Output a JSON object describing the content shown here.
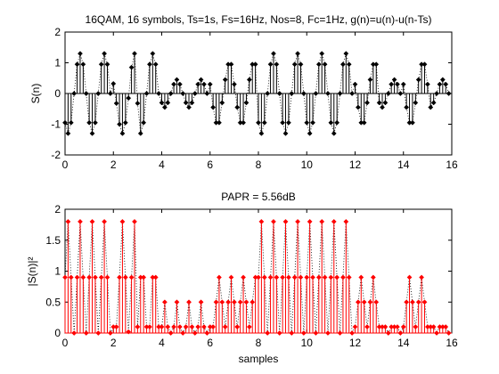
{
  "chart_data": [
    {
      "type": "stem",
      "title": "16QAM, 16 symbols, Ts=1s, Fs=16Hz, Nos=8, Fc=1Hz, g(n)=u(n)-u(n-Ts)",
      "xlabel": "",
      "ylabel": "S(n)",
      "xlim": [
        0,
        16
      ],
      "ylim": [
        -2,
        2
      ],
      "xticks": [
        "0",
        "2",
        "4",
        "6",
        "8",
        "10",
        "12",
        "14",
        "16"
      ],
      "yticks": [
        "-2",
        "-1",
        "0",
        "1",
        "2"
      ],
      "stem_color": "#000000",
      "dotted_line_color": "#000000",
      "grid": false,
      "x": [
        0,
        0.125,
        0.25,
        0.375,
        0.5,
        0.625,
        0.75,
        0.875,
        1,
        1.125,
        1.25,
        1.375,
        1.5,
        1.625,
        1.75,
        1.875,
        2,
        2.125,
        2.25,
        2.375,
        2.5,
        2.625,
        2.75,
        2.875,
        3,
        3.125,
        3.25,
        3.375,
        3.5,
        3.625,
        3.75,
        3.875,
        4,
        4.125,
        4.25,
        4.375,
        4.5,
        4.625,
        4.75,
        4.875,
        5,
        5.125,
        5.25,
        5.375,
        5.5,
        5.625,
        5.75,
        5.875,
        6,
        6.125,
        6.25,
        6.375,
        6.5,
        6.625,
        6.75,
        6.875,
        7,
        7.125,
        7.25,
        7.375,
        7.5,
        7.625,
        7.75,
        7.875,
        8,
        8.125,
        8.25,
        8.375,
        8.5,
        8.625,
        8.75,
        8.875,
        9,
        9.125,
        9.25,
        9.375,
        9.5,
        9.625,
        9.75,
        9.875,
        10,
        10.125,
        10.25,
        10.375,
        10.5,
        10.625,
        10.75,
        10.875,
        11,
        11.125,
        11.25,
        11.375,
        11.5,
        11.625,
        11.75,
        11.875,
        12,
        12.125,
        12.25,
        12.375,
        12.5,
        12.625,
        12.75,
        12.875,
        13,
        13.125,
        13.25,
        13.375,
        13.5,
        13.625,
        13.75,
        13.875,
        14,
        14.125,
        14.25,
        14.375,
        14.5,
        14.625,
        14.75,
        14.875,
        15,
        15.125,
        15.25,
        15.375,
        15.5,
        15.625,
        15.75,
        15.875
      ],
      "values": [
        -0.95,
        -1.3,
        -0.95,
        0,
        0.95,
        1.3,
        0.95,
        0,
        -0.95,
        -1.3,
        -0.95,
        0,
        0.95,
        1.3,
        0.95,
        0,
        0.32,
        -0.32,
        -1,
        -1.3,
        -0.95,
        -0.15,
        0.85,
        1.3,
        -0.32,
        -1.3,
        -0.95,
        0,
        0.95,
        1.3,
        0.95,
        0,
        -0.3,
        -0.45,
        -0.3,
        0,
        0.3,
        0.45,
        0.3,
        0,
        -0.3,
        -0.45,
        -0.3,
        0,
        0.3,
        0.45,
        0.3,
        0,
        0.3,
        -0.45,
        -0.95,
        -0.95,
        -0.3,
        0.45,
        0.95,
        0.95,
        0.3,
        -0.45,
        -0.95,
        -0.95,
        -0.3,
        0.45,
        0.95,
        0.95,
        -0.95,
        -1.3,
        -0.95,
        0,
        0.95,
        1.3,
        0.95,
        0,
        -0.95,
        -1.3,
        -0.95,
        0,
        0.95,
        1.3,
        0.95,
        0,
        -0.95,
        -1.3,
        -0.95,
        0,
        0.95,
        1.3,
        0.95,
        0,
        -0.95,
        -1.3,
        -0.95,
        0,
        0.95,
        1.3,
        0.95,
        0,
        0.3,
        -0.45,
        -0.95,
        -0.95,
        -0.3,
        0.45,
        0.95,
        0.95,
        -0.3,
        -0.45,
        -0.3,
        0,
        0.3,
        0.45,
        0.3,
        0,
        0.3,
        -0.45,
        -0.95,
        -0.95,
        -0.3,
        0.45,
        0.95,
        0.95,
        0.3,
        -0.45,
        -0.3,
        0,
        0.3,
        0.45,
        0.3,
        0
      ]
    },
    {
      "type": "stem",
      "title": "PAPR = 5.56dB",
      "xlabel": "samples",
      "ylabel": "|S(n)|²",
      "xlim": [
        0,
        16
      ],
      "ylim": [
        0,
        2
      ],
      "xticks": [
        "0",
        "2",
        "4",
        "6",
        "8",
        "10",
        "12",
        "14",
        "16"
      ],
      "yticks": [
        "0",
        "0.5",
        "1",
        "1.5",
        "2"
      ],
      "stem_color": "#ff0000",
      "dotted_line_color": "#000000",
      "grid": false,
      "x": [
        0,
        0.125,
        0.25,
        0.375,
        0.5,
        0.625,
        0.75,
        0.875,
        1,
        1.125,
        1.25,
        1.375,
        1.5,
        1.625,
        1.75,
        1.875,
        2,
        2.125,
        2.25,
        2.375,
        2.5,
        2.625,
        2.75,
        2.875,
        3,
        3.125,
        3.25,
        3.375,
        3.5,
        3.625,
        3.75,
        3.875,
        4,
        4.125,
        4.25,
        4.375,
        4.5,
        4.625,
        4.75,
        4.875,
        5,
        5.125,
        5.25,
        5.375,
        5.5,
        5.625,
        5.75,
        5.875,
        6,
        6.125,
        6.25,
        6.375,
        6.5,
        6.625,
        6.75,
        6.875,
        7,
        7.125,
        7.25,
        7.375,
        7.5,
        7.625,
        7.75,
        7.875,
        8,
        8.125,
        8.25,
        8.375,
        8.5,
        8.625,
        8.75,
        8.875,
        9,
        9.125,
        9.25,
        9.375,
        9.5,
        9.625,
        9.75,
        9.875,
        10,
        10.125,
        10.25,
        10.375,
        10.5,
        10.625,
        10.75,
        10.875,
        11,
        11.125,
        11.25,
        11.375,
        11.5,
        11.625,
        11.75,
        11.875,
        12,
        12.125,
        12.25,
        12.375,
        12.5,
        12.625,
        12.75,
        12.875,
        13,
        13.125,
        13.25,
        13.375,
        13.5,
        13.625,
        13.75,
        13.875,
        14,
        14.125,
        14.25,
        14.375,
        14.5,
        14.625,
        14.75,
        14.875,
        15,
        15.125,
        15.25,
        15.375,
        15.5,
        15.625,
        15.75,
        15.875
      ],
      "values": [
        0.9,
        1.8,
        0.9,
        0,
        0.9,
        1.8,
        0.9,
        0,
        0.9,
        1.8,
        0.9,
        0,
        0.9,
        1.8,
        0.9,
        0,
        0.1,
        0.1,
        0.9,
        1.8,
        0.9,
        0.02,
        0.9,
        1.8,
        0.1,
        0.9,
        0.9,
        0.1,
        0.1,
        0.9,
        0.9,
        0.1,
        0.1,
        0.5,
        0.1,
        0,
        0.1,
        0.5,
        0.1,
        0,
        0.1,
        0.5,
        0.1,
        0,
        0.1,
        0.5,
        0.1,
        0,
        0.1,
        0.1,
        0.5,
        0.9,
        0.5,
        0.1,
        0.5,
        0.9,
        0.5,
        0.1,
        0.5,
        0.9,
        0.5,
        0.1,
        0.5,
        0.9,
        0.9,
        1.8,
        0.9,
        0,
        0.9,
        1.8,
        0.9,
        0,
        0.9,
        1.8,
        0.9,
        0,
        0.9,
        1.8,
        0.9,
        0,
        0.9,
        1.8,
        0.9,
        0,
        0.9,
        1.8,
        0.9,
        0,
        0.9,
        1.8,
        0.9,
        0,
        0.9,
        1.8,
        0.9,
        0,
        0.1,
        0.5,
        0.9,
        0.5,
        0.1,
        0.5,
        0.9,
        0.5,
        0.1,
        0.1,
        0.1,
        0,
        0.1,
        0.1,
        0.1,
        0,
        0.1,
        0.5,
        0.9,
        0.5,
        0.1,
        0.5,
        0.9,
        0.5,
        0.1,
        0.1,
        0.1,
        0,
        0.1,
        0.1,
        0.1,
        0
      ]
    }
  ]
}
